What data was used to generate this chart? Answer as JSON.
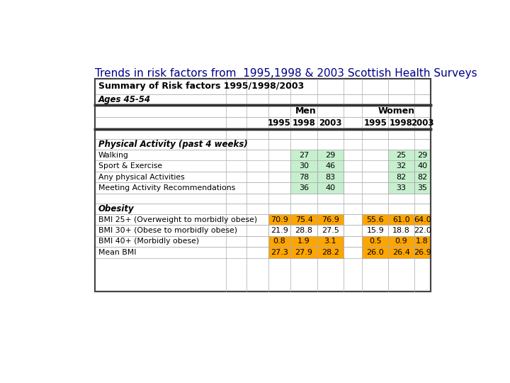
{
  "title": "Trends in risk factors from  1995,1998 & 2003 Scottish Health Surveys",
  "table_title": "Summary of Risk factors 1995/1998/2003",
  "table_subtitle": "Ages 45-54",
  "section1_label": "Physical Activity (past 4 weeks)",
  "rows_pa": [
    {
      "label": "Walking",
      "m1995": "",
      "m1998": "27",
      "m2003": "29",
      "w1995": "",
      "w1998": "25",
      "w2003": "29"
    },
    {
      "label": "Sport & Exercise",
      "m1995": "",
      "m1998": "30",
      "m2003": "46",
      "w1995": "",
      "w1998": "32",
      "w2003": "40"
    },
    {
      "label": "Any physical Activities",
      "m1995": "",
      "m1998": "78",
      "m2003": "83",
      "w1995": "",
      "w1998": "82",
      "w2003": "82"
    },
    {
      "label": "Meeting Activity Recommendations",
      "m1995": "",
      "m1998": "36",
      "m2003": "40",
      "w1995": "",
      "w1998": "33",
      "w2003": "35"
    }
  ],
  "section2_label": "Obesity",
  "rows_ob": [
    {
      "label": "BMI 25+ (Overweight to morbidly obese)",
      "m1995": "70.9",
      "m1998": "75.4",
      "m2003": "76.9",
      "w1995": "55.6",
      "w1998": "61.0",
      "w2003": "64.0",
      "hl_m": true,
      "hl_w": true
    },
    {
      "label": "BMI 30+ (Obese to morbidly obese)",
      "m1995": "21.9",
      "m1998": "28.8",
      "m2003": "27.5",
      "w1995": "15.9",
      "w1998": "18.8",
      "w2003": "22.0",
      "hl_m": false,
      "hl_w": false
    },
    {
      "label": "BMI 40+ (Morbidly obese)",
      "m1995": "0.8",
      "m1998": "1.9",
      "m2003": "3.1",
      "w1995": "0.5",
      "w1998": "0.9",
      "w2003": "1.8",
      "hl_m": true,
      "hl_w": true
    },
    {
      "label": "Mean BMI",
      "m1995": "27.3",
      "m1998": "27.9",
      "m2003": "28.2",
      "w1995": "26.0",
      "w1998": "26.4",
      "w2003": "26.9",
      "hl_m": true,
      "hl_w": true
    }
  ],
  "color_green": "#c6efce",
  "color_orange": "#ffa500",
  "color_white": "#ffffff",
  "title_color": "#00008B",
  "color_border_dark": "#555555",
  "color_border_light": "#aaaaaa",
  "color_thick": "#333333"
}
